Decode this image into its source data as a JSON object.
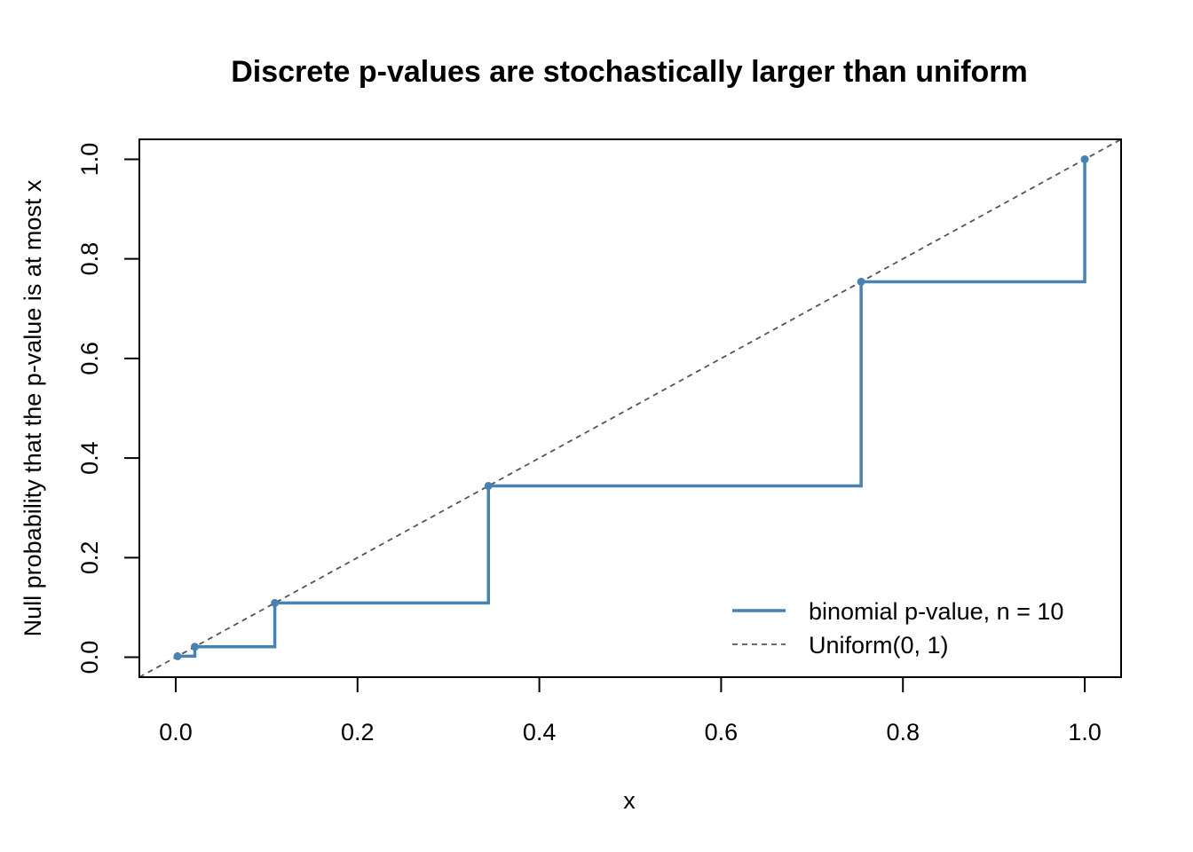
{
  "chart_data": {
    "type": "line",
    "title": "Discrete p-values are stochastically larger than uniform",
    "xlabel": "x",
    "ylabel": "Null probability that the p-value is at most x",
    "xlim": [
      -0.04,
      1.04
    ],
    "ylim": [
      -0.04,
      1.04
    ],
    "x_ticks": [
      "0.0",
      "0.2",
      "0.4",
      "0.6",
      "0.8",
      "1.0"
    ],
    "y_ticks": [
      "0.0",
      "0.2",
      "0.4",
      "0.6",
      "0.8",
      "1.0"
    ],
    "grid": false,
    "legend_position": "bottom-right",
    "series": [
      {
        "name": "binomial p-value, n = 10",
        "style": "step",
        "color": "#4682B4",
        "x": [
          0.002,
          0.021,
          0.109,
          0.344,
          0.754,
          1.0
        ],
        "y": [
          0.002,
          0.021,
          0.109,
          0.344,
          0.754,
          1.0
        ]
      },
      {
        "name": "Uniform(0, 1)",
        "style": "dashed",
        "color": "#555555",
        "x": [
          -0.04,
          1.04
        ],
        "y": [
          -0.04,
          1.04
        ]
      }
    ]
  }
}
